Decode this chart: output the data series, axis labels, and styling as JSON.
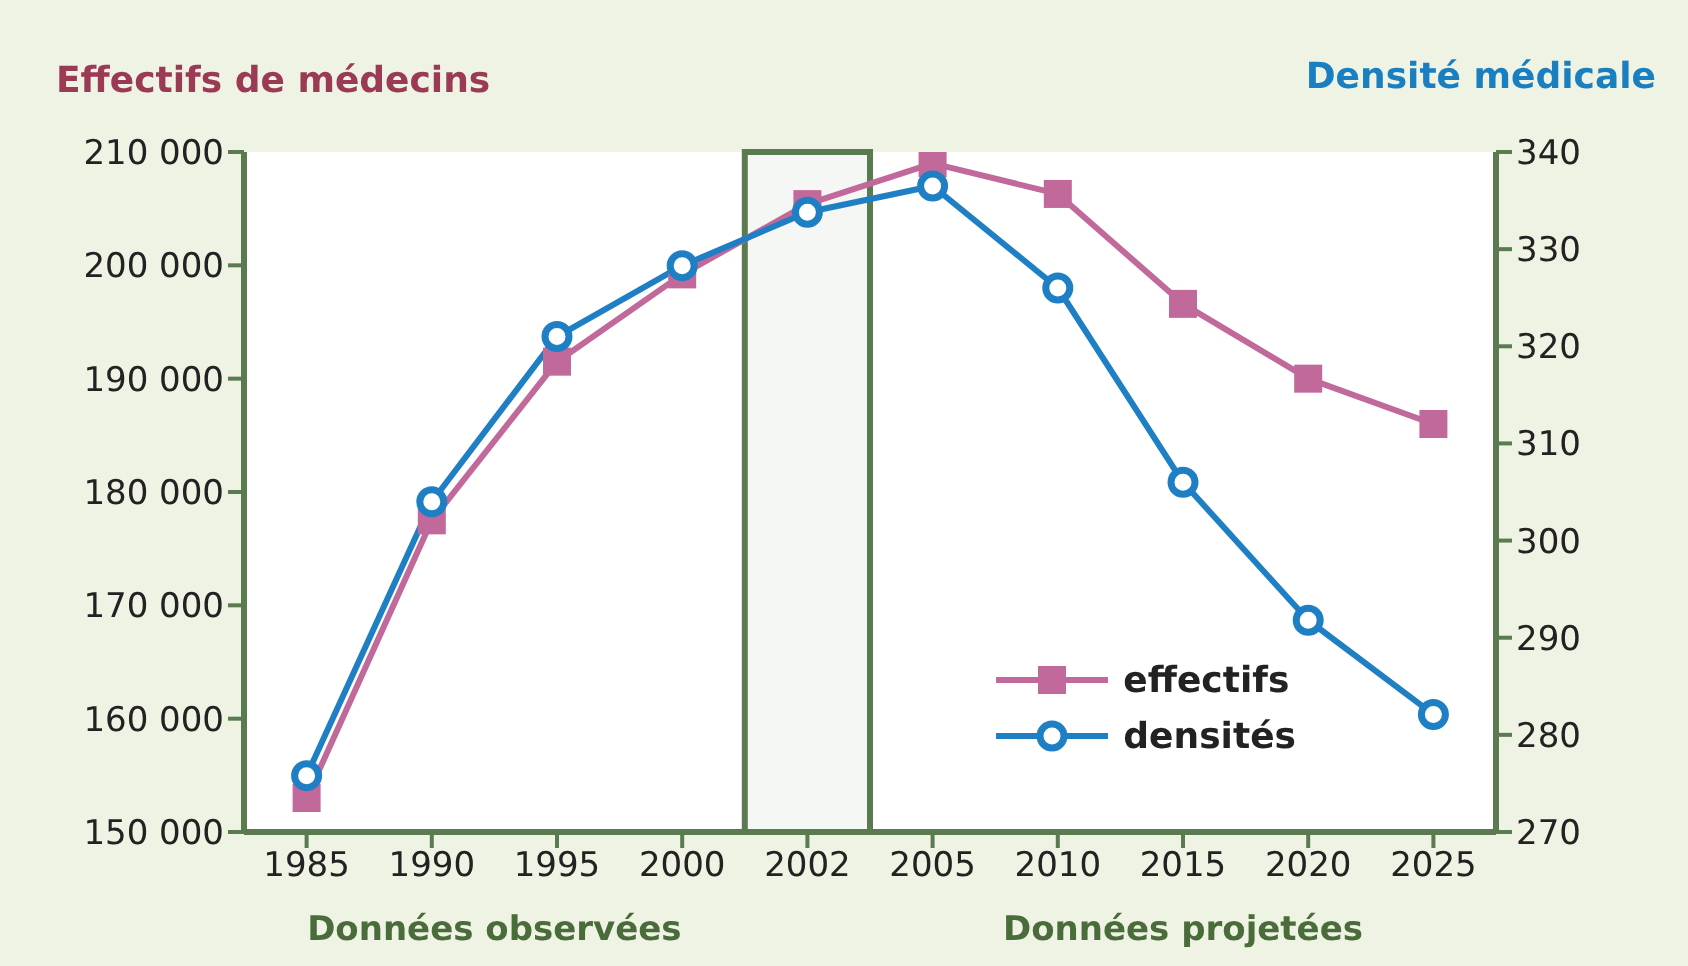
{
  "chart_data": {
    "type": "line",
    "ylabel": "Effectifs de médecins",
    "y2label": "Densité médicale",
    "categories": [
      "1985",
      "1990",
      "1995",
      "2000",
      "2002",
      "2005",
      "2010",
      "2015",
      "2020",
      "2025"
    ],
    "series": [
      {
        "name": "effectifs",
        "color": "#c0699a",
        "marker": "square",
        "values": [
          153000,
          177500,
          191500,
          199200,
          205400,
          209000,
          206300,
          196600,
          190000,
          186000
        ]
      },
      {
        "name": "densités",
        "color": "#1f7fc4",
        "marker": "circle",
        "axis": "y2",
        "values": [
          275.8,
          304,
          321,
          328.3,
          333.8,
          336.5,
          326,
          306,
          291.8,
          282.1
        ]
      }
    ],
    "ylim": [
      150000,
      210000
    ],
    "yticks": [
      {
        "value": 150000,
        "label": "150 000"
      },
      {
        "value": 160000,
        "label": "160 000"
      },
      {
        "value": 170000,
        "label": "170 000"
      },
      {
        "value": 180000,
        "label": "180 000"
      },
      {
        "value": 190000,
        "label": "190 000"
      },
      {
        "value": 200000,
        "label": "200 000"
      },
      {
        "value": 210000,
        "label": "210 000"
      }
    ],
    "y2lim": [
      270,
      340
    ],
    "y2ticks": [
      270,
      280,
      290,
      300,
      310,
      320,
      330,
      340
    ],
    "bands": [
      {
        "axis": "x",
        "from": "2002",
        "to": "2002",
        "color": "#5a7a50"
      }
    ],
    "annotations": [
      "Données observées",
      "Données projetées"
    ],
    "legend": "bottom right"
  }
}
